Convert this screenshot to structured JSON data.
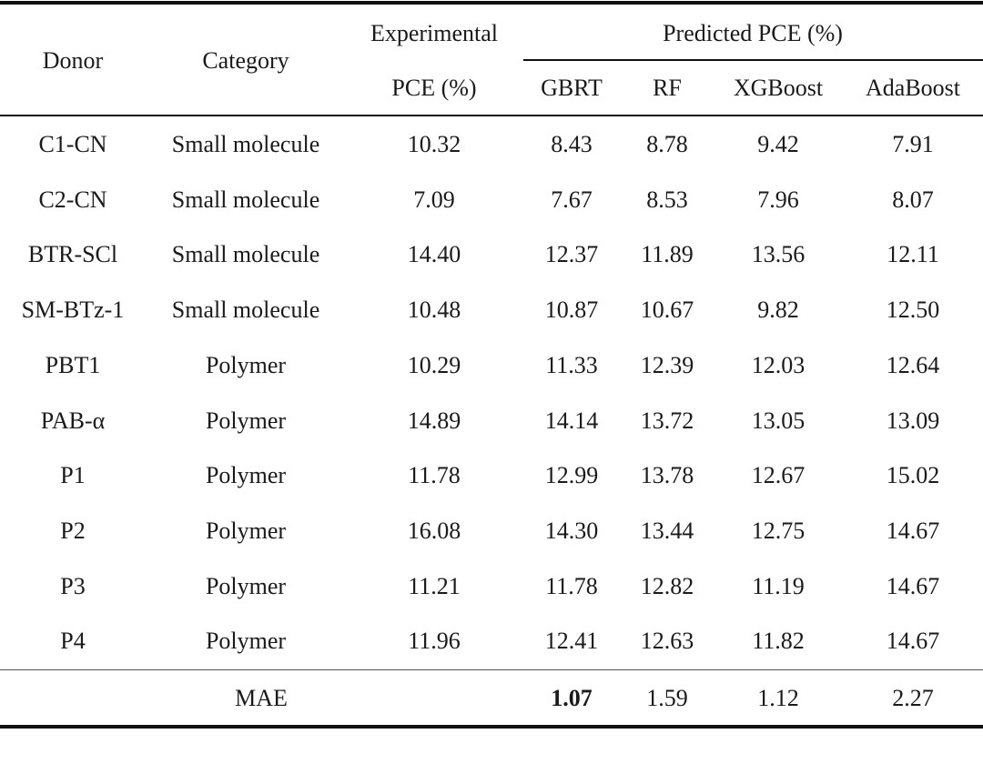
{
  "table": {
    "header": {
      "donor": "Donor",
      "category": "Category",
      "experimental": [
        "Experimental",
        "PCE (%)"
      ],
      "predicted": "Predicted PCE (%)",
      "models": [
        "GBRT",
        "RF",
        "XGBoost",
        "AdaBoost"
      ]
    },
    "rows": [
      [
        "C1-CN",
        "Small molecule",
        "10.32",
        "8.43",
        "8.78",
        "9.42",
        "7.91"
      ],
      [
        "C2-CN",
        "Small molecule",
        "7.09",
        "7.67",
        "8.53",
        "7.96",
        "8.07"
      ],
      [
        "BTR-SCl",
        "Small molecule",
        "14.40",
        "12.37",
        "11.89",
        "13.56",
        "12.11"
      ],
      [
        "SM-BTz-1",
        "Small molecule",
        "10.48",
        "10.87",
        "10.67",
        "9.82",
        "12.50"
      ],
      [
        "PBT1",
        "Polymer",
        "10.29",
        "11.33",
        "12.39",
        "12.03",
        "12.64"
      ],
      [
        "PAB-α",
        "Polymer",
        "14.89",
        "14.14",
        "13.72",
        "13.05",
        "13.09"
      ],
      [
        "P1",
        "Polymer",
        "11.78",
        "12.99",
        "13.78",
        "12.67",
        "15.02"
      ],
      [
        "P2",
        "Polymer",
        "16.08",
        "14.30",
        "13.44",
        "12.75",
        "14.67"
      ],
      [
        "P3",
        "Polymer",
        "11.21",
        "11.78",
        "12.82",
        "11.19",
        "14.67"
      ],
      [
        "P4",
        "Polymer",
        "11.96",
        "12.41",
        "12.63",
        "11.82",
        "14.67"
      ]
    ],
    "mae": {
      "label": "MAE",
      "values": [
        "1.07",
        "1.59",
        "1.12",
        "2.27"
      ]
    }
  }
}
